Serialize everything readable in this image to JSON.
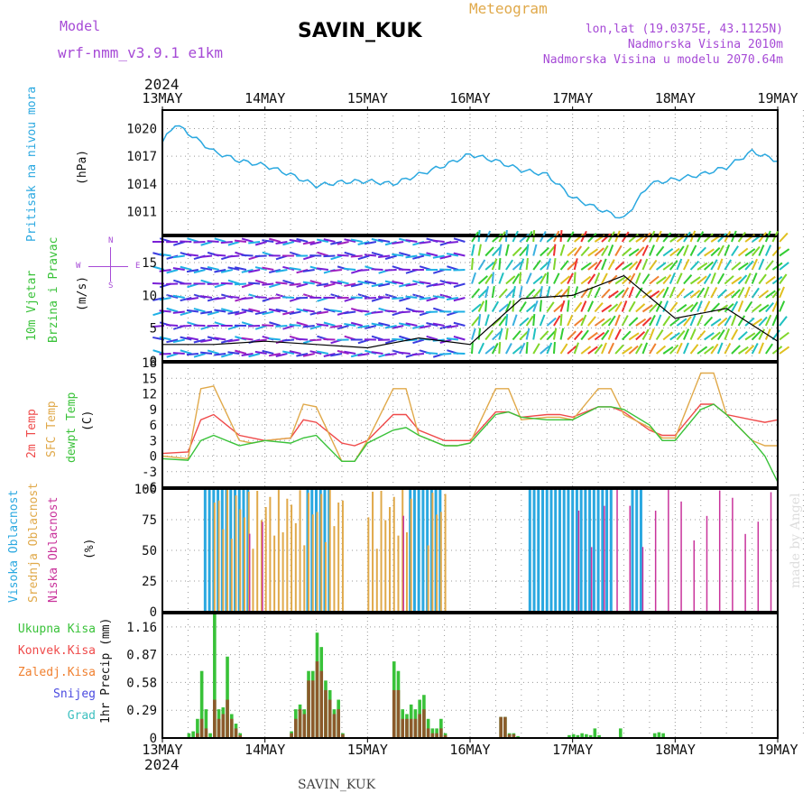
{
  "header": {
    "model_label": "Model",
    "model_value": "wrf-nmm_v3.9.1 e1km",
    "station": "SAVIN_KUK",
    "title": "Meteogram",
    "lonlat": "lon,lat (19.0375E, 43.1125N)",
    "elevation": "Nadmorska Visina 2010m",
    "model_elevation": "Nadmorska Visina u modelu 2070.64m",
    "year_top": "2024",
    "year_bottom": "2024",
    "footer_station": "SAVIN_KUK",
    "credit": "made by Angel"
  },
  "colors": {
    "pressure": "#2aa8e0",
    "temp2m": "#ef4a4a",
    "sfc": "#e0a94a",
    "dewpt": "#39c239",
    "high_cloud": "#2aa8e0",
    "mid_cloud": "#e0a94a",
    "low_cloud": "#c9339b",
    "total_precip": "#39c239",
    "conv_precip": "#ef4a4a",
    "frozen": "#f08030",
    "snow": "#4a4ae0",
    "hail": "#3dc0c0"
  },
  "panels": {
    "pressure": {
      "label": "Pritisak na nivou mora",
      "unit": "(hPa)",
      "ticks": [
        "1020",
        "1017",
        "1014",
        "1011"
      ]
    },
    "wind": {
      "label1": "10m Vjetar",
      "label2": "Brzina i Pravac",
      "unit": "(m/s)",
      "ticks": [
        "15",
        "10",
        "5",
        "0"
      ],
      "compass_w": "W",
      "compass_e": "E",
      "compass_n": "N",
      "compass_s": "S"
    },
    "temp": {
      "label1": "2m Temp",
      "label2": "SFC Temp",
      "label3": "dewpt Temp",
      "unit": "(C)",
      "ticks": [
        "18",
        "15",
        "12",
        "9",
        "6",
        "3",
        "0",
        "-3",
        "-6"
      ]
    },
    "cloud": {
      "label1": "Visoka Oblacnost",
      "label2": "Srednja Oblacnost",
      "label3": "Niska Oblacnost",
      "unit": "(%)",
      "ticks": [
        "100",
        "75",
        "50",
        "25",
        "0"
      ]
    },
    "precip": {
      "legend": [
        "Ukupna Kisa",
        "Konvek.Kisa",
        "Zaledj.Kisa",
        "Snijeg",
        "Grad"
      ],
      "unit": "1hr Precip (mm)",
      "ticks": [
        "1.16",
        "0.87",
        "0.58",
        "0.29",
        "0"
      ]
    }
  },
  "x_labels": [
    "13MAY",
    "14MAY",
    "15MAY",
    "16MAY",
    "17MAY",
    "18MAY",
    "19MAY"
  ],
  "chart_data": [
    {
      "type": "line",
      "title": "Pritisak na nivou mora",
      "ylabel": "(hPa)",
      "ylim": [
        1008.5,
        1022
      ],
      "x_hours": [
        0,
        3,
        6,
        12,
        18,
        24,
        30,
        36,
        42,
        48,
        54,
        60,
        66,
        72,
        78,
        84,
        90,
        96,
        102,
        108,
        114,
        120,
        126,
        132,
        138,
        144
      ],
      "series": [
        {
          "name": "Pritisak",
          "values": [
            1018.5,
            1020.5,
            1019.5,
            1017.5,
            1016.5,
            1016,
            1015,
            1013.8,
            1014.2,
            1014.3,
            1014,
            1015,
            1016,
            1017.2,
            1016.5,
            1015.5,
            1015,
            1012.5,
            1011.3,
            1010.2,
            1014,
            1014.5,
            1015,
            1015.8,
            1017.5,
            1016.5
          ]
        }
      ]
    },
    {
      "type": "line",
      "title": "10m Vjetar Brzina i Pravac",
      "ylabel": "(m/s)",
      "ylim": [
        0,
        19
      ],
      "x_hours": [
        0,
        12,
        24,
        36,
        48,
        60,
        72,
        84,
        96,
        108,
        120,
        132,
        144
      ],
      "series": [
        {
          "name": "Brzina",
          "values": [
            2.5,
            2.5,
            3,
            2.5,
            2,
            3.5,
            2.5,
            9.5,
            10,
            13,
            6.5,
            8,
            3
          ]
        }
      ]
    },
    {
      "type": "line",
      "title": "Temperatura",
      "ylabel": "(C)",
      "ylim": [
        -6,
        18
      ],
      "x_hours": [
        0,
        6,
        9,
        12,
        18,
        21,
        24,
        30,
        33,
        36,
        42,
        45,
        48,
        54,
        57,
        60,
        66,
        69,
        72,
        78,
        81,
        84,
        90,
        93,
        96,
        102,
        105,
        108,
        114,
        117,
        120,
        126,
        129,
        132,
        138,
        141,
        144
      ],
      "series": [
        {
          "name": "2m Temp",
          "values": [
            0.5,
            0.8,
            7,
            8,
            4,
            3.5,
            3,
            3.5,
            7,
            6.5,
            2.5,
            2,
            3,
            8,
            8,
            5,
            3,
            3,
            3,
            8.5,
            8.5,
            7.5,
            8,
            8,
            7.5,
            9.5,
            9.5,
            8.5,
            5,
            4,
            4,
            10,
            10,
            8,
            7,
            6.5,
            7
          ]
        },
        {
          "name": "SFC Temp",
          "values": [
            0,
            -0.5,
            13,
            13.5,
            3,
            2.5,
            3,
            3.5,
            10,
            9.5,
            -1,
            -1,
            3,
            13,
            13,
            4,
            2,
            2,
            2.5,
            13,
            13,
            7,
            7.5,
            7.5,
            7,
            13,
            13,
            8,
            5.5,
            3.5,
            3.5,
            16,
            16,
            8,
            3,
            2,
            2
          ]
        },
        {
          "name": "dewpt Temp",
          "values": [
            -0.5,
            -0.8,
            3,
            4,
            2,
            2.5,
            3,
            2.5,
            3.5,
            4,
            -1,
            -1,
            2.5,
            5,
            5.5,
            4,
            2,
            2,
            2.5,
            8,
            8.5,
            7.5,
            7,
            7,
            7,
            9.5,
            9.5,
            9,
            6,
            3,
            3,
            9,
            10,
            8,
            3,
            0,
            -5
          ]
        }
      ]
    },
    {
      "type": "bar",
      "title": "Oblacnost",
      "ylabel": "(%)",
      "ylim": [
        0,
        100
      ],
      "note": "hourly bars",
      "series": [
        {
          "name": "Visoka Oblacnost",
          "ranges": [
            [
              10,
              20
            ],
            [
              34,
              39
            ],
            [
              58,
              65
            ],
            [
              86,
              105
            ],
            [
              110,
              112
            ]
          ],
          "values": [
            100,
            100,
            100,
            100,
            100
          ]
        },
        {
          "name": "Srednja Oblacnost",
          "ranges": [
            [
              12,
              42
            ],
            [
              48,
              58
            ],
            [
              62,
              66
            ]
          ],
          "values": [
            100,
            100,
            100
          ]
        },
        {
          "name": "Niska Oblacnost",
          "ranges": [
            [
              20,
              24
            ],
            [
              56,
              58
            ],
            [
              97,
              144
            ]
          ],
          "values": [
            100,
            100,
            100
          ]
        }
      ]
    },
    {
      "type": "bar",
      "title": "1hr Precip",
      "ylabel": "(mm)",
      "ylim": [
        0,
        1.3
      ],
      "categories_hours": [
        6,
        7,
        8,
        9,
        10,
        11,
        12,
        13,
        14,
        15,
        16,
        17,
        18,
        30,
        31,
        32,
        33,
        34,
        35,
        36,
        37,
        38,
        39,
        40,
        41,
        42,
        54,
        55,
        56,
        57,
        58,
        59,
        60,
        61,
        62,
        63,
        64,
        65,
        66,
        79,
        80,
        81,
        82,
        83,
        95,
        96,
        97,
        98,
        99,
        100,
        101,
        102,
        107,
        115,
        116,
        117
      ],
      "series": [
        {
          "name": "Ukupna Kisa",
          "values": [
            0.05,
            0.07,
            0.2,
            0.7,
            0.3,
            0.05,
            1.3,
            0.3,
            0.32,
            0.85,
            0.25,
            0.15,
            0.05,
            0.07,
            0.3,
            0.35,
            0.3,
            0.7,
            0.7,
            1.1,
            0.95,
            0.6,
            0.5,
            0.3,
            0.4,
            0.05,
            0.8,
            0.7,
            0.3,
            0.25,
            0.35,
            0.3,
            0.4,
            0.45,
            0.2,
            0.1,
            0.1,
            0.2,
            0.05,
            0.22,
            0.22,
            0.05,
            0.05,
            0.02,
            0.03,
            0.04,
            0.03,
            0.05,
            0.04,
            0.03,
            0.1,
            0.03,
            0.1,
            0.05,
            0.06,
            0.05
          ]
        },
        {
          "name": "Konvek.Kisa",
          "values": [
            0,
            0,
            0.05,
            0.2,
            0.1,
            0,
            0.4,
            0.2,
            0.25,
            0.4,
            0.2,
            0.1,
            0.03,
            0.05,
            0.2,
            0.3,
            0.25,
            0.6,
            0.6,
            0.8,
            0.7,
            0.5,
            0.4,
            0.25,
            0.3,
            0.04,
            0.5,
            0.5,
            0.2,
            0.2,
            0.2,
            0.2,
            0.25,
            0.3,
            0.1,
            0.05,
            0.05,
            0.1,
            0.03,
            0.22,
            0.22,
            0.04,
            0.04,
            0.01,
            0,
            0,
            0,
            0,
            0,
            0,
            0,
            0,
            0,
            0,
            0,
            0
          ]
        }
      ]
    }
  ]
}
